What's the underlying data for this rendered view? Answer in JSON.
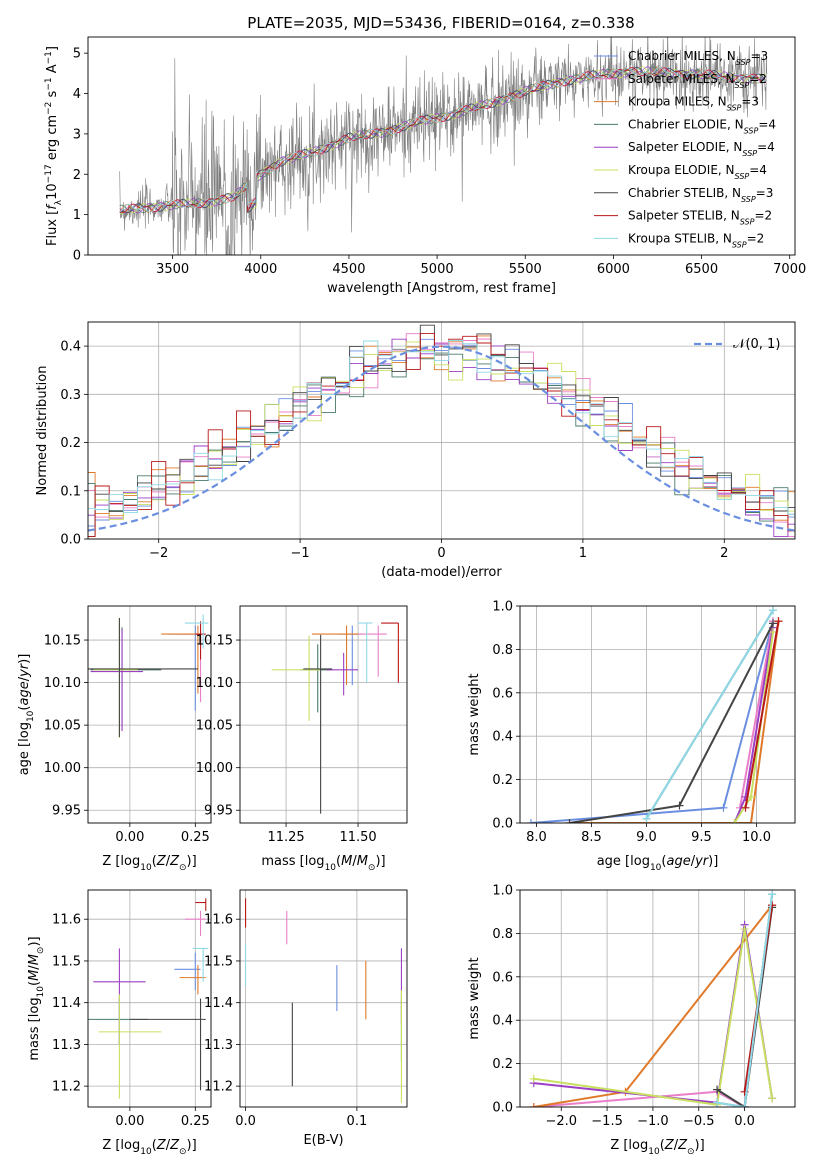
{
  "title": "PLATE=2035, MJD=53436, FIBERID=0164, z=0.338",
  "colors": {
    "Chabrier MILES": "#6b8fe0",
    "Salpeter MILES": "#e97fc8",
    "Kroupa MILES": "#e07a2a",
    "Chabrier ELODIE": "#4a7a6a",
    "Salpeter ELODIE": "#9b3fc4",
    "Kroupa ELODIE": "#c8e060",
    "Chabrier STELIB": "#444444",
    "Salpeter STELIB": "#b81818",
    "Kroupa STELIB": "#8fd8e6",
    "data": "#7f7f7f",
    "normal": "#6b8fe0",
    "grid": "#b0b0b0"
  },
  "chart_data": [
    {
      "id": "spectrum",
      "type": "line",
      "xlabel": "wavelength [Angstrom, rest frame]",
      "ylabel": "Flux [fλ10⁻¹⁷ erg cm⁻² s⁻¹ A⁻¹]",
      "xlim": [
        3020,
        7030
      ],
      "ylim": [
        0,
        5.4
      ],
      "xticks": [
        3500,
        4000,
        4500,
        5000,
        5500,
        6000,
        6500,
        7000
      ],
      "yticks": [
        0,
        1,
        2,
        3,
        4,
        5
      ],
      "legend_position": "right",
      "legend": [
        {
          "model": "Chabrier MILES",
          "label": "Chabrier MILES, N",
          "sub": "SSP",
          "tail": "=3"
        },
        {
          "model": "Salpeter MILES",
          "label": "Salpeter MILES, N",
          "sub": "SSP",
          "tail": "=2"
        },
        {
          "model": "Kroupa MILES",
          "label": "Kroupa MILES, N",
          "sub": "SSP",
          "tail": "=3"
        },
        {
          "model": "Chabrier ELODIE",
          "label": "Chabrier ELODIE, N",
          "sub": "SSP",
          "tail": "=4"
        },
        {
          "model": "Salpeter ELODIE",
          "label": "Salpeter ELODIE, N",
          "sub": "SSP",
          "tail": "=4"
        },
        {
          "model": "Kroupa ELODIE",
          "label": "Kroupa ELODIE, N",
          "sub": "SSP",
          "tail": "=4"
        },
        {
          "model": "Chabrier STELIB",
          "label": "Chabrier STELIB, N",
          "sub": "SSP",
          "tail": "=3"
        },
        {
          "model": "Salpeter STELIB",
          "label": "Salpeter STELIB, N",
          "sub": "SSP",
          "tail": "=2"
        },
        {
          "model": "Kroupa STELIB",
          "label": "Kroupa STELIB, N",
          "sub": "SSP",
          "tail": "=2"
        }
      ],
      "continuum": [
        [
          3200,
          1.1
        ],
        [
          3400,
          1.2
        ],
        [
          3550,
          1.25
        ],
        [
          3700,
          1.3
        ],
        [
          3850,
          1.45
        ],
        [
          4000,
          2.0
        ],
        [
          4100,
          2.3
        ],
        [
          4300,
          2.55
        ],
        [
          4500,
          2.9
        ],
        [
          4700,
          3.05
        ],
        [
          4900,
          3.3
        ],
        [
          5100,
          3.5
        ],
        [
          5300,
          3.75
        ],
        [
          5500,
          4.05
        ],
        [
          5700,
          4.3
        ],
        [
          5900,
          4.45
        ],
        [
          6100,
          4.55
        ],
        [
          6400,
          4.5
        ],
        [
          6700,
          4.4
        ],
        [
          6870,
          4.35
        ]
      ]
    },
    {
      "id": "residuals",
      "type": "histogram",
      "xlabel": "(data-model)/error",
      "ylabel": "Normed distribution",
      "xlim": [
        -2.5,
        2.5
      ],
      "ylim": [
        0,
        0.45
      ],
      "xticks": [
        -2,
        -1,
        0,
        1,
        2
      ],
      "yticks": [
        0.0,
        0.1,
        0.2,
        0.3,
        0.4
      ],
      "legend_label": "𝒩(0, 1)",
      "legend_position": "top-right"
    },
    {
      "id": "Z-age",
      "type": "errorbar",
      "xlabel": "Z [log₁₀(Z/Z⊙)]",
      "ylabel": "age  [log₁₀(age/yr)]",
      "xlim": [
        -0.16,
        0.31
      ],
      "ylim": [
        9.935,
        10.19
      ],
      "xticks": [
        0.0,
        0.25
      ],
      "xtick_labels": [
        "0.00",
        "0.25"
      ],
      "yticks": [
        9.95,
        10.0,
        10.05,
        10.1,
        10.15
      ],
      "yticks_labels": [
        "9.95",
        "10.00",
        "10.05",
        "10.10",
        "10.15"
      ],
      "points": [
        {
          "model": "Chabrier MILES",
          "x": 0.25,
          "y": 10.157,
          "xerr": [
            0.1,
            0.03
          ],
          "yerr": [
            0.09,
            0.01
          ]
        },
        {
          "model": "Salpeter MILES",
          "x": 0.27,
          "y": 10.157,
          "xerr": [
            0.08,
            0.02
          ],
          "yerr": [
            0.08,
            0.01
          ]
        },
        {
          "model": "Kroupa MILES",
          "x": 0.26,
          "y": 10.157,
          "xerr": [
            0.14,
            0.02
          ],
          "yerr": [
            0.07,
            0.01
          ]
        },
        {
          "model": "Chabrier ELODIE",
          "x": -0.03,
          "y": 10.115,
          "xerr": [
            0.12,
            0.15
          ],
          "yerr": [
            0.07,
            0.05
          ]
        },
        {
          "model": "Salpeter ELODIE",
          "x": -0.03,
          "y": 10.113,
          "xerr": [
            0.12,
            0.08
          ],
          "yerr": [
            0.07,
            0.05
          ]
        },
        {
          "model": "Kroupa ELODIE",
          "x": -0.04,
          "y": 10.115,
          "xerr": [
            0.1,
            0.07
          ],
          "yerr": [
            0.08,
            0.06
          ]
        },
        {
          "model": "Chabrier STELIB",
          "x": -0.04,
          "y": 10.116,
          "xerr": [
            0.12,
            0.3
          ],
          "yerr": [
            0.08,
            0.06
          ]
        },
        {
          "model": "Salpeter STELIB",
          "x": 0.27,
          "y": 10.157,
          "xerr": [
            0.02,
            0.02
          ],
          "yerr": [
            0.03,
            0.015
          ]
        },
        {
          "model": "Kroupa STELIB",
          "x": 0.28,
          "y": 10.17,
          "xerr": [
            0.07,
            0.02
          ],
          "yerr": [
            0.03,
            0.01
          ]
        }
      ]
    },
    {
      "id": "mass-age",
      "type": "errorbar",
      "xlabel": "mass [log₁₀(M/M⊙)]",
      "ylabel": "",
      "xlim": [
        11.09,
        11.67
      ],
      "ylim": [
        9.935,
        10.19
      ],
      "xticks": [
        11.25,
        11.5
      ],
      "xtick_labels": [
        "11.25",
        "11.50"
      ],
      "yticks": [
        9.95,
        10.0,
        10.05,
        10.1,
        10.15
      ],
      "yticks_labels": [
        "9.95",
        "10.00",
        "10.05",
        "10.10",
        "10.15"
      ],
      "points": [
        {
          "model": "Chabrier MILES",
          "x": 11.48,
          "y": 10.157,
          "xerr": [
            0.05,
            0.04
          ],
          "yerr": [
            0.06,
            0.01
          ]
        },
        {
          "model": "Salpeter MILES",
          "x": 11.57,
          "y": 10.157,
          "xerr": [
            0.1,
            0.03
          ],
          "yerr": [
            0.05,
            0.01
          ]
        },
        {
          "model": "Kroupa MILES",
          "x": 11.46,
          "y": 10.157,
          "xerr": [
            0.12,
            0.04
          ],
          "yerr": [
            0.06,
            0.01
          ]
        },
        {
          "model": "Chabrier ELODIE",
          "x": 11.36,
          "y": 10.115,
          "xerr": [
            0.06,
            0.05
          ],
          "yerr": [
            0.05,
            0.03
          ]
        },
        {
          "model": "Salpeter ELODIE",
          "x": 11.45,
          "y": 10.115,
          "xerr": [
            0.06,
            0.05
          ],
          "yerr": [
            0.03,
            0.02
          ]
        },
        {
          "model": "Kroupa ELODIE",
          "x": 11.33,
          "y": 10.115,
          "xerr": [
            0.13,
            0.04
          ],
          "yerr": [
            0.06,
            0.04
          ]
        },
        {
          "model": "Chabrier STELIB",
          "x": 11.37,
          "y": 10.116,
          "xerr": [
            0.06,
            0.04
          ],
          "yerr": [
            0.17,
            0.04
          ]
        },
        {
          "model": "Salpeter STELIB",
          "x": 11.64,
          "y": 10.17,
          "xerr": [
            0.06,
            0.0
          ],
          "yerr": [
            0.07,
            0.0
          ]
        },
        {
          "model": "Kroupa STELIB",
          "x": 11.53,
          "y": 10.17,
          "xerr": [
            0.03,
            0.02
          ],
          "yerr": [
            0.07,
            0.0
          ]
        }
      ]
    },
    {
      "id": "age-weight",
      "type": "line",
      "xlabel": "age  [log₁₀(age/yr)]",
      "ylabel": "mass weight",
      "xlim": [
        7.85,
        10.35
      ],
      "ylim": [
        0,
        1
      ],
      "xticks": [
        8.0,
        8.5,
        9.0,
        9.5,
        10.0
      ],
      "xtick_labels": [
        "8.0",
        "8.5",
        "9.0",
        "9.5",
        "10.0"
      ],
      "yticks": [
        0.0,
        0.2,
        0.4,
        0.6,
        0.8,
        1.0
      ],
      "yticks_labels": [
        "0.0",
        "0.2",
        "0.4",
        "0.6",
        "0.8",
        "1.0"
      ],
      "series": [
        {
          "model": "Chabrier MILES",
          "x": [
            7.95,
            9.7,
            10.15
          ],
          "y": [
            0.0,
            0.07,
            0.93
          ]
        },
        {
          "model": "Salpeter MILES",
          "x": [
            9.85,
            10.15
          ],
          "y": [
            0.07,
            0.93
          ]
        },
        {
          "model": "Kroupa MILES",
          "x": [
            8.3,
            9.95,
            10.2
          ],
          "y": [
            0.0,
            0.0,
            0.93
          ]
        },
        {
          "model": "Chabrier ELODIE",
          "x": [
            9.0,
            10.15
          ],
          "y": [
            0.02,
            0.98
          ]
        },
        {
          "model": "Salpeter ELODIE",
          "x": [
            9.8,
            9.9,
            10.15
          ],
          "y": [
            0.0,
            0.12,
            0.9
          ]
        },
        {
          "model": "Kroupa ELODIE",
          "x": [
            9.8,
            9.95,
            10.15
          ],
          "y": [
            0.0,
            0.12,
            0.88
          ]
        },
        {
          "model": "Chabrier STELIB",
          "x": [
            8.3,
            9.3,
            10.15
          ],
          "y": [
            0.0,
            0.08,
            0.92
          ]
        },
        {
          "model": "Salpeter STELIB",
          "x": [
            9.9,
            10.2
          ],
          "y": [
            0.07,
            0.93
          ]
        },
        {
          "model": "Kroupa STELIB",
          "x": [
            9.0,
            10.15
          ],
          "y": [
            0.02,
            0.98
          ]
        }
      ]
    },
    {
      "id": "Z-mass",
      "type": "errorbar",
      "xlabel": "Z [log₁₀(Z/Z⊙)]",
      "ylabel": "mass [log₁₀(M/M⊙)]",
      "xlim": [
        -0.16,
        0.31
      ],
      "ylim": [
        11.15,
        11.67
      ],
      "xticks": [
        0.0,
        0.25
      ],
      "xtick_labels": [
        "0.00",
        "0.25"
      ],
      "yticks": [
        11.2,
        11.3,
        11.4,
        11.5,
        11.6
      ],
      "yticks_labels": [
        "11.2",
        "11.3",
        "11.4",
        "11.5",
        "11.6"
      ],
      "points": [
        {
          "model": "Chabrier MILES",
          "x": 0.25,
          "y": 11.48,
          "xerr": [
            0.08,
            0.02
          ],
          "yerr": [
            0.05,
            0.04
          ]
        },
        {
          "model": "Salpeter MILES",
          "x": 0.27,
          "y": 11.6,
          "xerr": [
            0.06,
            0.02
          ],
          "yerr": [
            0.04,
            0.02
          ]
        },
        {
          "model": "Kroupa MILES",
          "x": 0.26,
          "y": 11.46,
          "xerr": [
            0.07,
            0.03
          ],
          "yerr": [
            0.04,
            0.03
          ]
        },
        {
          "model": "Chabrier ELODIE",
          "x": -0.04,
          "y": 11.36,
          "xerr": [
            0.12,
            0.11
          ],
          "yerr": [
            0.06,
            0.05
          ]
        },
        {
          "model": "Salpeter ELODIE",
          "x": -0.04,
          "y": 11.45,
          "xerr": [
            0.1,
            0.1
          ],
          "yerr": [
            0.15,
            0.08
          ]
        },
        {
          "model": "Kroupa ELODIE",
          "x": -0.04,
          "y": 11.33,
          "xerr": [
            0.08,
            0.16
          ],
          "yerr": [
            0.16,
            0.09
          ]
        },
        {
          "model": "Chabrier STELIB",
          "x": 0.27,
          "y": 11.36,
          "xerr": [
            0.27,
            0.02
          ],
          "yerr": [
            0.17,
            0.05
          ]
        },
        {
          "model": "Salpeter STELIB",
          "x": 0.29,
          "y": 11.64,
          "xerr": [
            0.04,
            0.0
          ],
          "yerr": [
            0.02,
            0.01
          ]
        },
        {
          "model": "Kroupa STELIB",
          "x": 0.28,
          "y": 11.53,
          "xerr": [
            0.04,
            0.02
          ],
          "yerr": [
            0.08,
            0.0
          ]
        }
      ]
    },
    {
      "id": "ebv-mass",
      "type": "errorbar",
      "xlabel": "E(B-V)",
      "ylabel": "",
      "xlim": [
        -0.005,
        0.145
      ],
      "ylim": [
        11.15,
        11.67
      ],
      "xticks": [
        0.0,
        0.1
      ],
      "xtick_labels": [
        "0.0",
        "0.1"
      ],
      "yticks": [
        11.2,
        11.3,
        11.4,
        11.5,
        11.6
      ],
      "yticks_labels": [
        "11.2",
        "11.3",
        "11.4",
        "11.5",
        "11.6"
      ],
      "points": [
        {
          "model": "Chabrier MILES",
          "x": 0.082,
          "y": 11.45,
          "xerr": [
            0,
            0
          ],
          "yerr": [
            0.07,
            0.04
          ]
        },
        {
          "model": "Salpeter MILES",
          "x": 0.037,
          "y": 11.58,
          "xerr": [
            0,
            0
          ],
          "yerr": [
            0.04,
            0.04
          ]
        },
        {
          "model": "Kroupa MILES",
          "x": 0.108,
          "y": 11.43,
          "xerr": [
            0,
            0
          ],
          "yerr": [
            0.07,
            0.07
          ]
        },
        {
          "model": "Chabrier ELODIE",
          "x": 0.14,
          "y": 11.36,
          "xerr": [
            0,
            0
          ],
          "yerr": [
            0.1,
            0.05
          ]
        },
        {
          "model": "Salpeter ELODIE",
          "x": 0.14,
          "y": 11.45,
          "xerr": [
            0,
            0
          ],
          "yerr": [
            0.1,
            0.08
          ]
        },
        {
          "model": "Kroupa ELODIE",
          "x": 0.14,
          "y": 11.3,
          "xerr": [
            0,
            0
          ],
          "yerr": [
            0.14,
            0.13
          ]
        },
        {
          "model": "Chabrier STELIB",
          "x": 0.042,
          "y": 11.3,
          "xerr": [
            0,
            0
          ],
          "yerr": [
            0.1,
            0.1
          ]
        },
        {
          "model": "Salpeter STELIB",
          "x": 0.0,
          "y": 11.62,
          "xerr": [
            0,
            0
          ],
          "yerr": [
            0.04,
            0.03
          ]
        },
        {
          "model": "Kroupa STELIB",
          "x": 0.0,
          "y": 11.5,
          "xerr": [
            0,
            0
          ],
          "yerr": [
            0.06,
            0.04
          ]
        }
      ]
    },
    {
      "id": "Z-weight",
      "type": "line",
      "xlabel": "Z [log₁₀(Z/Z⊙)]",
      "ylabel": "mass weight",
      "xlim": [
        -2.45,
        0.55
      ],
      "ylim": [
        0,
        1
      ],
      "xticks": [
        -2.0,
        -1.5,
        -1.0,
        -0.5,
        0.0
      ],
      "xtick_labels": [
        "−2.0",
        "−1.5",
        "−1.0",
        "−0.5",
        "0.0"
      ],
      "yticks": [
        0.0,
        0.2,
        0.4,
        0.6,
        0.8,
        1.0
      ],
      "yticks_labels": [
        "0.0",
        "0.2",
        "0.4",
        "0.6",
        "0.8",
        "1.0"
      ],
      "series": [
        {
          "model": "Chabrier MILES",
          "x": [
            -0.3,
            0.0,
            0.3
          ],
          "y": [
            0.07,
            0.0,
            0.93
          ]
        },
        {
          "model": "Salpeter MILES",
          "x": [
            -2.3,
            -0.3,
            0.0,
            0.3
          ],
          "y": [
            0.0,
            0.07,
            0.0,
            0.93
          ]
        },
        {
          "model": "Kroupa MILES",
          "x": [
            -2.3,
            -1.3,
            0.3
          ],
          "y": [
            0.0,
            0.07,
            0.93
          ]
        },
        {
          "model": "Chabrier ELODIE",
          "x": [
            -0.3,
            0.0,
            0.3
          ],
          "y": [
            0.02,
            0.0,
            0.98
          ]
        },
        {
          "model": "Salpeter ELODIE",
          "x": [
            -2.3,
            -0.3,
            0.0,
            0.3
          ],
          "y": [
            0.11,
            0.02,
            0.84,
            0.04
          ]
        },
        {
          "model": "Kroupa ELODIE",
          "x": [
            -2.3,
            -0.3,
            0.0,
            0.3
          ],
          "y": [
            0.13,
            0.01,
            0.82,
            0.04
          ]
        },
        {
          "model": "Chabrier STELIB",
          "x": [
            -0.3,
            0.0,
            0.3
          ],
          "y": [
            0.08,
            0.0,
            0.92
          ]
        },
        {
          "model": "Salpeter STELIB",
          "x": [
            0.0,
            0.3
          ],
          "y": [
            0.07,
            0.93
          ]
        },
        {
          "model": "Kroupa STELIB",
          "x": [
            -0.3,
            0.0,
            0.3
          ],
          "y": [
            0.02,
            0.0,
            0.98
          ]
        }
      ]
    }
  ]
}
